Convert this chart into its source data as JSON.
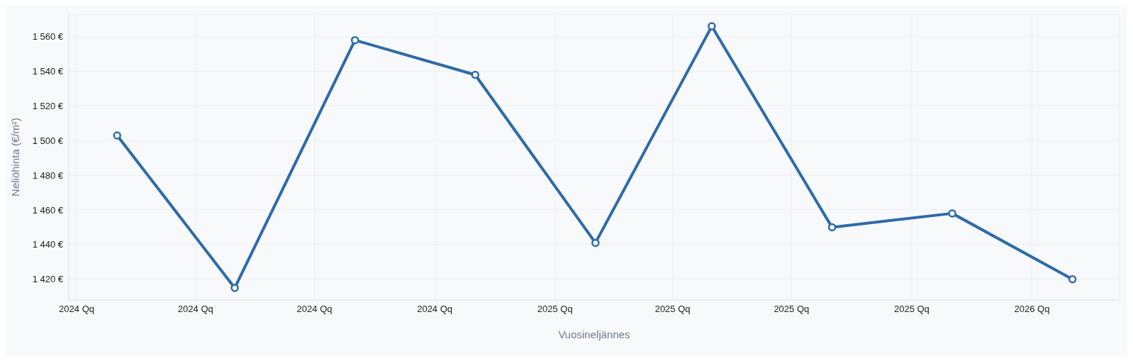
{
  "chart_data": {
    "type": "line",
    "xlabel": "Vuosineljännes",
    "ylabel": "Neliöhinta (€/m²)",
    "x": [
      "2024-02-01",
      "2024-05-01",
      "2024-08-01",
      "2024-11-01",
      "2025-02-01",
      "2025-05-01",
      "2025-08-01",
      "2025-11-01",
      "2026-02-01"
    ],
    "series": [
      {
        "color": "#2e6aa8",
        "values": [
          1503,
          1415,
          1558,
          1538,
          1441,
          1566,
          1450,
          1458,
          1420
        ]
      }
    ],
    "xlim": [
      "2023-12-26",
      "2026-03-09"
    ],
    "xticks": [
      {
        "value": "2024-01-01",
        "label": "2024 Qq"
      },
      {
        "value": "2024-04-01",
        "label": "2024 Qq"
      },
      {
        "value": "2024-07-01",
        "label": "2024 Qq"
      },
      {
        "value": "2024-10-01",
        "label": "2024 Qq"
      },
      {
        "value": "2025-01-01",
        "label": "2025 Qq"
      },
      {
        "value": "2025-04-01",
        "label": "2025 Qq"
      },
      {
        "value": "2025-07-01",
        "label": "2025 Qq"
      },
      {
        "value": "2025-10-01",
        "label": "2025 Qq"
      },
      {
        "value": "2026-01-01",
        "label": "2026 Qq"
      }
    ],
    "ylim": [
      1408,
      1573
    ],
    "yticks": [
      {
        "value": 1420,
        "label": "1 420 €"
      },
      {
        "value": 1440,
        "label": "1 440 €"
      },
      {
        "value": 1460,
        "label": "1 460 €"
      },
      {
        "value": 1480,
        "label": "1 480 €"
      },
      {
        "value": 1500,
        "label": "1 500 €"
      },
      {
        "value": 1520,
        "label": "1 520 €"
      },
      {
        "value": 1540,
        "label": "1 540 €"
      },
      {
        "value": 1560,
        "label": "1 560 €"
      }
    ],
    "grid": true,
    "marker": "circle",
    "line_style": "solid",
    "legend": false
  }
}
